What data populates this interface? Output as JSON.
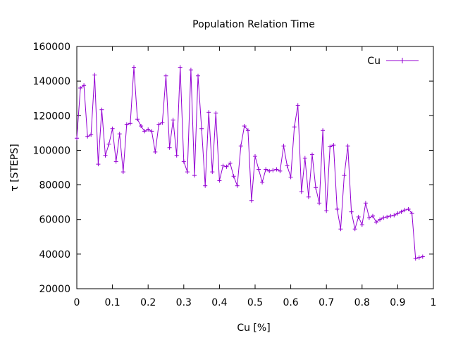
{
  "chart_data": {
    "type": "line",
    "title": "Population Relation Time",
    "xlabel": "Cu [%]",
    "ylabel": "τ [STEPS]",
    "xlim": [
      0,
      1
    ],
    "ylim": [
      20000,
      160000
    ],
    "xticks": [
      0,
      0.1,
      0.2,
      0.3,
      0.4,
      0.5,
      0.6,
      0.7,
      0.8,
      0.9,
      1
    ],
    "xtick_labels": [
      "0",
      "0.1",
      "0.2",
      "0.3",
      "0.4",
      "0.5",
      "0.6",
      "0.7",
      "0.8",
      "0.9",
      "1"
    ],
    "yticks": [
      20000,
      40000,
      60000,
      80000,
      100000,
      120000,
      140000,
      160000
    ],
    "ytick_labels": [
      "20000",
      "40000",
      "60000",
      "80000",
      "100000",
      "120000",
      "140000",
      "160000"
    ],
    "grid": false,
    "legend_position": "top-right",
    "series": [
      {
        "name": "Cu",
        "color": "#9400d3",
        "marker": "plus",
        "x": [
          0.0,
          0.01,
          0.02,
          0.03,
          0.04,
          0.05,
          0.06,
          0.07,
          0.08,
          0.09,
          0.1,
          0.11,
          0.12,
          0.13,
          0.14,
          0.15,
          0.16,
          0.17,
          0.18,
          0.19,
          0.2,
          0.21,
          0.22,
          0.23,
          0.24,
          0.25,
          0.26,
          0.27,
          0.28,
          0.29,
          0.3,
          0.31,
          0.32,
          0.33,
          0.34,
          0.35,
          0.36,
          0.37,
          0.38,
          0.39,
          0.4,
          0.41,
          0.42,
          0.43,
          0.44,
          0.45,
          0.46,
          0.47,
          0.48,
          0.49,
          0.5,
          0.51,
          0.52,
          0.53,
          0.54,
          0.55,
          0.56,
          0.57,
          0.58,
          0.59,
          0.6,
          0.61,
          0.62,
          0.63,
          0.64,
          0.65,
          0.66,
          0.67,
          0.68,
          0.69,
          0.7,
          0.71,
          0.72,
          0.73,
          0.74,
          0.75,
          0.76,
          0.77,
          0.78,
          0.79,
          0.8,
          0.81,
          0.82,
          0.83,
          0.84,
          0.85,
          0.86,
          0.87,
          0.88,
          0.89,
          0.9,
          0.91,
          0.92,
          0.93,
          0.94,
          0.95,
          0.96,
          0.97
        ],
        "y": [
          107000,
          136000,
          137500,
          108000,
          109000,
          143500,
          92000,
          123500,
          97000,
          103500,
          112500,
          93500,
          109500,
          87500,
          115000,
          115500,
          148000,
          118000,
          114000,
          111000,
          112000,
          111000,
          99000,
          115000,
          116000,
          143000,
          101500,
          117500,
          97000,
          148000,
          93500,
          87500,
          146500,
          85500,
          143000,
          112500,
          79500,
          122000,
          87500,
          121500,
          82500,
          91000,
          90500,
          92500,
          85000,
          79500,
          102500,
          114000,
          111500,
          71000,
          96500,
          89000,
          81500,
          89000,
          88000,
          88500,
          89000,
          88000,
          102500,
          91000,
          84500,
          113500,
          126000,
          76000,
          95500,
          73000,
          97500,
          78500,
          69500,
          111500,
          65000,
          102000,
          103000,
          66000,
          54500,
          85500,
          102500,
          64500,
          54500,
          61500,
          57000,
          69500,
          61000,
          62000,
          58500,
          60000,
          61000,
          61500,
          62000,
          62500,
          63500,
          64500,
          65500,
          66000,
          63500,
          37500,
          38000,
          38500
        ]
      }
    ]
  }
}
